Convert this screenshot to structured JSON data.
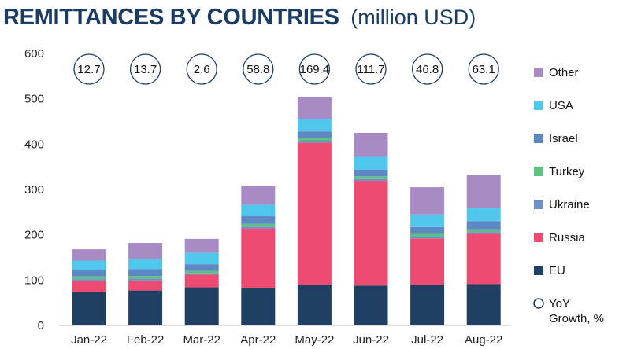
{
  "chart_data": {
    "type": "bar",
    "stacked": true,
    "title": "REMITTANCES BY COUNTRIES",
    "subtitle": "(million USD)",
    "xlabel": "",
    "ylabel": "",
    "ylim": [
      0,
      600
    ],
    "yticks": [
      0,
      100,
      200,
      300,
      400,
      500,
      600
    ],
    "grid": false,
    "legend_position": "right",
    "categories": [
      "Jan-22",
      "Feb-22",
      "Mar-22",
      "Apr-22",
      "May-22",
      "Jun-22",
      "Jul-22",
      "Aug-22"
    ],
    "series": [
      {
        "name": "EU",
        "color": "#1f3f63",
        "values": [
          73,
          77,
          84,
          82,
          90,
          88,
          90,
          91
        ]
      },
      {
        "name": "Russia",
        "color": "#ee4b73",
        "values": [
          25,
          22,
          28,
          132,
          313,
          231,
          102,
          111
        ]
      },
      {
        "name": "Ukraine",
        "color": "#6f8fc8",
        "values": [
          4,
          4,
          3,
          4,
          4,
          4,
          4,
          4
        ]
      },
      {
        "name": "Turkey",
        "color": "#5dbf82",
        "values": [
          6,
          6,
          5,
          6,
          6,
          6,
          6,
          6
        ]
      },
      {
        "name": "Israel",
        "color": "#5e88c4",
        "values": [
          15,
          15,
          15,
          17,
          15,
          15,
          15,
          18
        ]
      },
      {
        "name": "USA",
        "color": "#50c7ec",
        "values": [
          20,
          22,
          25,
          25,
          28,
          28,
          28,
          30
        ]
      },
      {
        "name": "Other",
        "color": "#a88bc4",
        "values": [
          25,
          36,
          31,
          42,
          48,
          53,
          60,
          72
        ]
      }
    ],
    "yoy_growth": {
      "name": "YoY Growth, %",
      "values": [
        "12.7",
        "13.7",
        "2.6",
        "58.8",
        "169.4",
        "111.7",
        "46.8",
        "63.1"
      ]
    },
    "legend_order": [
      "Other",
      "USA",
      "Israel",
      "Turkey",
      "Ukraine",
      "Russia",
      "EU"
    ]
  }
}
